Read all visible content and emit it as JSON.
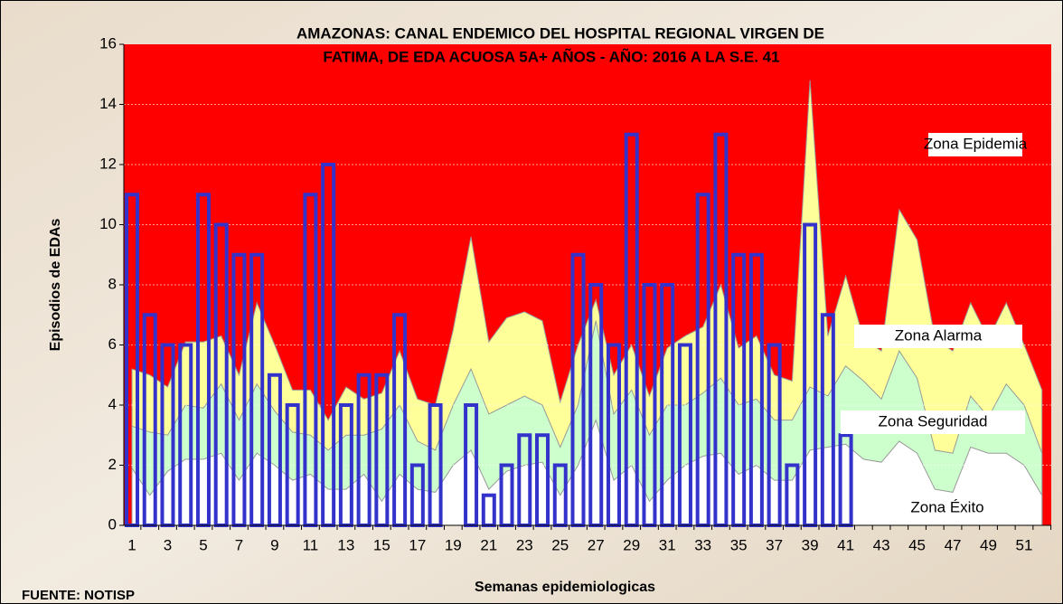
{
  "chart_data": {
    "type": "endemic-channel",
    "title": [
      "AMAZONAS: CANAL ENDEMICO DEL HOSPITAL REGIONAL VIRGEN DE",
      "FATIMA,  DE EDA ACUOSA 5A+ AÑOS -  AÑO: 2016 A LA S.E.  41"
    ],
    "x_label": "Semanas epidemiologicas",
    "y_label": "Episodios de EDAs",
    "source": "FUENTE: NOTISP",
    "epidemic_zone": {
      "name": "Zona Epidemia",
      "color": "#ff0000"
    },
    "categories": [
      1,
      null,
      3,
      null,
      5,
      null,
      7,
      null,
      9,
      null,
      11,
      null,
      13,
      null,
      15,
      null,
      17,
      null,
      19,
      null,
      21,
      null,
      23,
      null,
      25,
      null,
      27,
      null,
      29,
      null,
      31,
      null,
      33,
      null,
      35,
      null,
      37,
      null,
      39,
      null,
      41,
      null,
      43,
      null,
      45,
      null,
      47,
      null,
      49,
      null,
      51,
      null
    ],
    "zones": [
      {
        "name": "Zona Alarma",
        "color": "#ffff99",
        "values": [
          5.2,
          5.0,
          4.6,
          6.1,
          6.1,
          6.3,
          5.0,
          7.4,
          6.0,
          4.5,
          4.5,
          3.5,
          4.6,
          4.2,
          4.4,
          5.8,
          4.2,
          4.0,
          6.5,
          9.6,
          6.1,
          6.9,
          7.1,
          6.8,
          4.1,
          6.0,
          7.5,
          5.0,
          6.0,
          4.3,
          5.9,
          6.3,
          6.6,
          8.0,
          5.9,
          6.3,
          5.0,
          4.8,
          14.8,
          6.3,
          8.3,
          6.2,
          5.8,
          10.5,
          9.5,
          6.2,
          5.8,
          7.4,
          6.2,
          7.4,
          6.0,
          4.5
        ]
      },
      {
        "name": "Zona Seguridad",
        "color": "#ccffcc",
        "values": [
          3.3,
          3.1,
          3.0,
          4.0,
          3.9,
          4.7,
          3.5,
          4.7,
          3.8,
          3.1,
          3.0,
          2.5,
          3.0,
          3.0,
          3.2,
          4.0,
          2.8,
          2.5,
          4.0,
          5.2,
          3.7,
          4.0,
          4.3,
          4.0,
          2.6,
          4.0,
          6.8,
          3.7,
          4.5,
          3.0,
          4.0,
          4.0,
          4.4,
          4.9,
          4.0,
          4.2,
          3.5,
          3.5,
          4.6,
          4.3,
          5.3,
          4.8,
          4.2,
          5.8,
          4.9,
          2.5,
          2.4,
          4.3,
          3.6,
          4.7,
          4.0,
          2.4
        ]
      },
      {
        "name": "Zona Éxito",
        "color": "#ffffff",
        "values": [
          1.9,
          1.0,
          1.8,
          2.2,
          2.2,
          2.4,
          1.5,
          2.4,
          2.0,
          1.5,
          1.7,
          1.2,
          1.2,
          1.7,
          0.8,
          1.7,
          1.2,
          1.1,
          2.0,
          2.5,
          1.2,
          1.8,
          2.0,
          2.1,
          1.0,
          2.0,
          3.5,
          1.5,
          2.0,
          0.8,
          1.5,
          2.0,
          2.3,
          2.4,
          1.7,
          2.0,
          1.5,
          1.5,
          2.5,
          2.6,
          2.7,
          2.2,
          2.1,
          2.8,
          2.4,
          1.2,
          1.1,
          2.6,
          2.4,
          2.4,
          2.0,
          1.0
        ]
      }
    ],
    "bars": {
      "color": "#3333cc",
      "values": [
        11,
        7,
        6,
        6,
        11,
        10,
        9,
        9,
        5,
        4,
        11,
        12,
        4,
        5,
        5,
        7,
        2,
        4,
        0,
        4,
        1,
        2,
        3,
        3,
        2,
        9,
        8,
        6,
        13,
        8,
        8,
        6,
        11,
        13,
        9,
        9,
        6,
        2,
        10,
        7,
        3
      ]
    },
    "ylim": [
      0,
      16
    ],
    "yticks": [
      0,
      2,
      4,
      6,
      8,
      10,
      12,
      14,
      16
    ],
    "grid": true
  }
}
